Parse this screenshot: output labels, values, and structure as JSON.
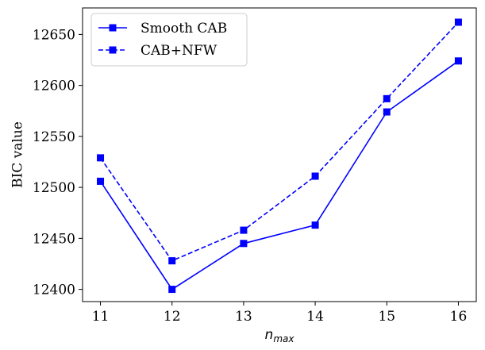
{
  "chart_data": {
    "type": "line",
    "title": "",
    "xlabel": "n",
    "xlabel_subscript": "max",
    "ylabel": "BIC value",
    "x": [
      11,
      12,
      13,
      14,
      15,
      16
    ],
    "xticks": [
      "11",
      "12",
      "13",
      "14",
      "15",
      "16"
    ],
    "yticks": [
      12400,
      12450,
      12500,
      12550,
      12600,
      12650
    ],
    "xlim": [
      10.75,
      16.25
    ],
    "ylim": [
      12388,
      12676
    ],
    "legend_position": "upper-left",
    "series": [
      {
        "name": "Smooth CAB",
        "style": "solid",
        "marker": "square",
        "color": "#0000ff",
        "values": [
          12506,
          12400,
          12445,
          12463,
          12574,
          12624
        ]
      },
      {
        "name": "CAB+NFW",
        "style": "dashed",
        "marker": "square",
        "color": "#0000ff",
        "values": [
          12529,
          12428,
          12458,
          12511,
          12587,
          12662
        ]
      }
    ]
  }
}
